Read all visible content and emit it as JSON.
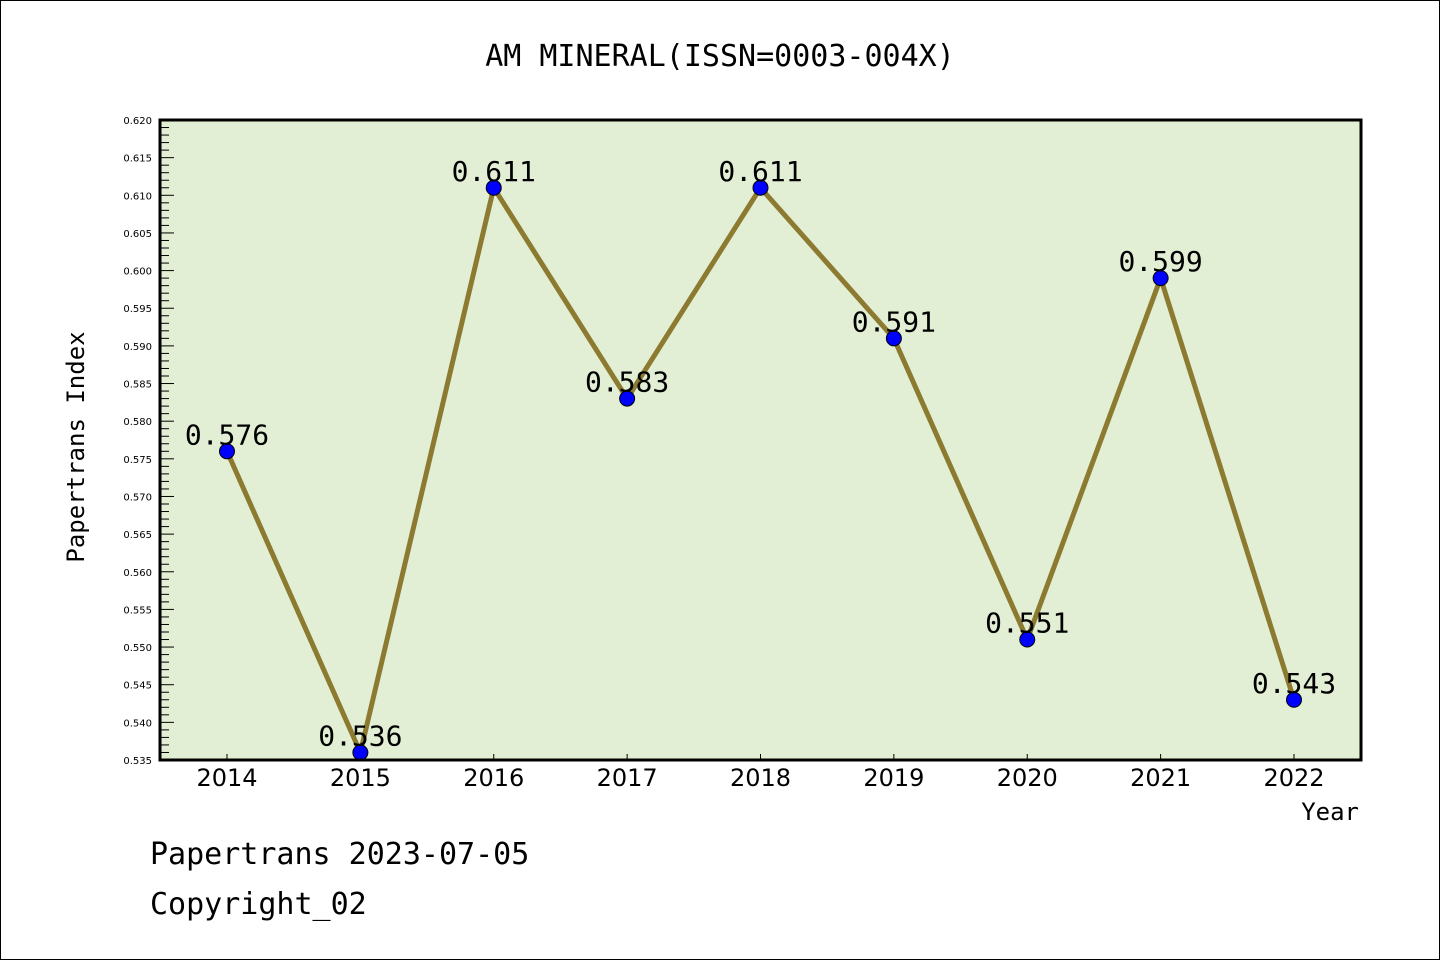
{
  "chart_data": {
    "type": "line",
    "title": "AM MINERAL(ISSN=0003-004X)",
    "xlabel": "Year",
    "ylabel": "Papertrans Index",
    "categories": [
      "2014",
      "2015",
      "2016",
      "2017",
      "2018",
      "2019",
      "2020",
      "2021",
      "2022"
    ],
    "values": [
      0.576,
      0.536,
      0.611,
      0.583,
      0.611,
      0.591,
      0.551,
      0.599,
      0.543
    ],
    "data_labels": [
      "0.576",
      "0.536",
      "0.611",
      "0.583",
      "0.611",
      "0.591",
      "0.551",
      "0.599",
      "0.543"
    ],
    "ylim": [
      0.535,
      0.62
    ],
    "ytick_step": 0.005,
    "yminor_step": 0.001,
    "grid": false,
    "colors": {
      "plot_bg": "#e2efd5",
      "line": "#8c7a30",
      "marker": "#0000ff"
    }
  },
  "footer": {
    "line1": "Papertrans 2023-07-05",
    "line2": "Copyright_02"
  }
}
